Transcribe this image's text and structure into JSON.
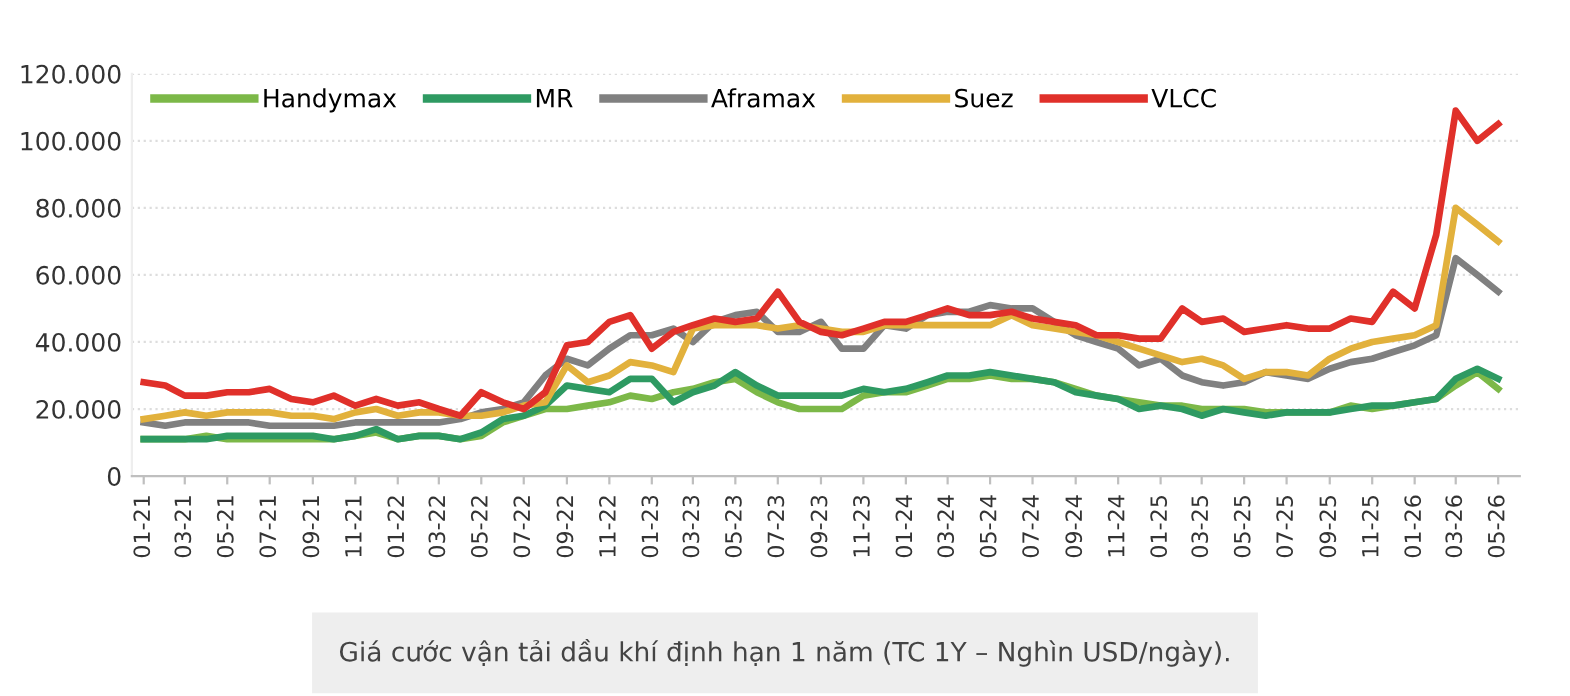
{
  "chart_data": {
    "type": "line",
    "x": [
      "2021-01",
      "2021-02",
      "2021-03",
      "2021-04",
      "2021-05",
      "2021-06",
      "2021-07",
      "2021-08",
      "2021-09",
      "2021-10",
      "2021-11",
      "2021-12",
      "2022-01",
      "2022-02",
      "2022-03",
      "2022-04",
      "2022-05",
      "2022-06",
      "2022-07",
      "2022-08",
      "2022-09",
      "2022-10",
      "2022-11",
      "2022-12",
      "2023-01",
      "2023-02",
      "2023-03",
      "2023-04",
      "2023-05",
      "2023-06",
      "2023-07",
      "2023-08",
      "2023-09",
      "2023-10",
      "2023-11",
      "2023-12",
      "2024-01",
      "2024-02",
      "2024-03",
      "2024-04",
      "2024-05",
      "2024-06",
      "2024-07",
      "2024-08",
      "2024-09",
      "2024-10",
      "2024-11",
      "2024-12",
      "2025-01",
      "2025-02",
      "2025-03",
      "2025-04",
      "2025-05",
      "2025-06",
      "2025-07",
      "2025-08",
      "2025-09",
      "2025-10",
      "2025-11",
      "2025-12",
      "2026-01",
      "2026-02",
      "2026-03",
      "2026-04",
      "2026-05"
    ],
    "series": [
      {
        "name": "Handymax",
        "color": "#7cb848",
        "values": [
          11000,
          11000,
          11000,
          12000,
          11000,
          11000,
          11000,
          11000,
          11000,
          11000,
          12000,
          13000,
          11000,
          12000,
          12000,
          11000,
          12000,
          16000,
          18000,
          20000,
          20000,
          21000,
          22000,
          24000,
          23000,
          25000,
          26000,
          28000,
          29000,
          25000,
          22000,
          20000,
          20000,
          20000,
          24000,
          25000,
          25000,
          27000,
          29000,
          29000,
          30000,
          29000,
          29000,
          28000,
          26000,
          24000,
          23000,
          22000,
          21000,
          21000,
          20000,
          20000,
          20000,
          19000,
          19000,
          19000,
          19000,
          21000,
          20000,
          21000,
          22000,
          23000,
          27000,
          31000,
          26000
        ]
      },
      {
        "name": "MR",
        "color": "#2e9a62",
        "values": [
          11000,
          11000,
          11000,
          11000,
          12000,
          12000,
          12000,
          12000,
          12000,
          11000,
          12000,
          14000,
          11000,
          12000,
          12000,
          11000,
          13000,
          17000,
          18000,
          21000,
          27000,
          26000,
          25000,
          29000,
          29000,
          22000,
          25000,
          27000,
          31000,
          27000,
          24000,
          24000,
          24000,
          24000,
          26000,
          25000,
          26000,
          28000,
          30000,
          30000,
          31000,
          30000,
          29000,
          28000,
          25000,
          24000,
          23000,
          20000,
          21000,
          20000,
          18000,
          20000,
          19000,
          18000,
          19000,
          19000,
          19000,
          20000,
          21000,
          21000,
          22000,
          23000,
          29000,
          32000,
          29000
        ]
      },
      {
        "name": "Aframax",
        "color": "#808080",
        "values": [
          16000,
          15000,
          16000,
          16000,
          16000,
          16000,
          15000,
          15000,
          15000,
          15000,
          16000,
          16000,
          16000,
          16000,
          16000,
          17000,
          19000,
          20000,
          22000,
          30000,
          35000,
          33000,
          38000,
          42000,
          42000,
          44000,
          40000,
          46000,
          48000,
          49000,
          43000,
          43000,
          46000,
          38000,
          38000,
          45000,
          44000,
          48000,
          49000,
          49000,
          51000,
          50000,
          50000,
          46000,
          42000,
          40000,
          38000,
          33000,
          35000,
          30000,
          28000,
          27000,
          28000,
          31000,
          30000,
          29000,
          32000,
          34000,
          35000,
          37000,
          39000,
          42000,
          65000,
          60000,
          55000
        ]
      },
      {
        "name": "Suez",
        "color": "#e2b13c",
        "values": [
          17000,
          18000,
          19000,
          18000,
          19000,
          19000,
          19000,
          18000,
          18000,
          17000,
          19000,
          20000,
          18000,
          19000,
          19000,
          18000,
          18000,
          19000,
          21000,
          22000,
          33000,
          28000,
          30000,
          34000,
          33000,
          31000,
          44000,
          45000,
          45000,
          45000,
          44000,
          45000,
          44000,
          43000,
          43000,
          45000,
          45000,
          45000,
          45000,
          45000,
          45000,
          48000,
          45000,
          44000,
          43000,
          42000,
          40000,
          38000,
          36000,
          34000,
          35000,
          33000,
          29000,
          31000,
          31000,
          30000,
          35000,
          38000,
          40000,
          41000,
          42000,
          45000,
          80000,
          75000,
          70000
        ]
      },
      {
        "name": "VLCC",
        "color": "#e0302a",
        "values": [
          28000,
          27000,
          24000,
          24000,
          25000,
          25000,
          26000,
          23000,
          22000,
          24000,
          21000,
          23000,
          21000,
          22000,
          20000,
          18000,
          25000,
          22000,
          20000,
          25000,
          39000,
          40000,
          46000,
          48000,
          38000,
          43000,
          45000,
          47000,
          46000,
          47000,
          55000,
          46000,
          43000,
          42000,
          44000,
          46000,
          46000,
          48000,
          50000,
          48000,
          48000,
          49000,
          47000,
          46000,
          45000,
          42000,
          42000,
          41000,
          41000,
          50000,
          46000,
          47000,
          43000,
          44000,
          45000,
          44000,
          44000,
          47000,
          46000,
          55000,
          50000,
          72000,
          109000,
          100000,
          105000
        ]
      }
    ],
    "ylim": [
      0,
      120000
    ],
    "yticks": [
      0,
      {
        "value": 20000,
        "label": "20.000"
      },
      {
        "value": 40000,
        "label": "40.000"
      },
      {
        "value": 60000,
        "label": "60.000"
      },
      {
        "value": 80000,
        "label": "80.000"
      },
      {
        "value": 100000,
        "label": "100.000"
      },
      {
        "value": 120000,
        "label": "120.000"
      }
    ],
    "xlim": [
      "2020-12-15",
      "2026-06-01"
    ],
    "xticks": [
      {
        "value": "2021-01",
        "label": "01-21"
      },
      {
        "value": "2021-03",
        "label": "03-21"
      },
      {
        "value": "2021-05",
        "label": "05-21"
      },
      {
        "value": "2021-07",
        "label": "07-21"
      },
      {
        "value": "2021-09",
        "label": "09-21"
      },
      {
        "value": "2021-11",
        "label": "11-21"
      },
      {
        "value": "2022-01",
        "label": "01-22"
      },
      {
        "value": "2022-03",
        "label": "03-22"
      },
      {
        "value": "2022-05",
        "label": "05-22"
      },
      {
        "value": "2022-07",
        "label": "07-22"
      },
      {
        "value": "2022-09",
        "label": "09-22"
      },
      {
        "value": "2022-11",
        "label": "11-22"
      },
      {
        "value": "2023-01",
        "label": "01-23"
      },
      {
        "value": "2023-03",
        "label": "03-23"
      },
      {
        "value": "2023-05",
        "label": "05-23"
      },
      {
        "value": "2023-07",
        "label": "07-23"
      },
      {
        "value": "2023-09",
        "label": "09-23"
      },
      {
        "value": "2023-11",
        "label": "11-23"
      },
      {
        "value": "2024-01",
        "label": "01-24"
      },
      {
        "value": "2024-03",
        "label": "03-24"
      },
      {
        "value": "2024-05",
        "label": "05-24"
      },
      {
        "value": "2024-07",
        "label": "07-24"
      },
      {
        "value": "2024-09",
        "label": "09-24"
      },
      {
        "value": "2024-11",
        "label": "11-24"
      },
      {
        "value": "2025-01",
        "label": "01-25"
      },
      {
        "value": "2025-03",
        "label": "03-25"
      },
      {
        "value": "2025-05",
        "label": "05-25"
      },
      {
        "value": "2025-07",
        "label": "07-25"
      },
      {
        "value": "2025-09",
        "label": "09-25"
      },
      {
        "value": "2025-11",
        "label": "11-25"
      },
      {
        "value": "2026-01",
        "label": "01-26"
      },
      {
        "value": "2026-03",
        "label": "03-26"
      },
      {
        "value": "2026-05",
        "label": "05-26"
      }
    ],
    "grid": "y",
    "legend": "top left",
    "marker": "none",
    "line_style": "solid",
    "annotations": [
      "Giá cước vận tải dầu khí định hạn 1 năm (TC 1Y – Nghìn USD/ngày)."
    ]
  }
}
